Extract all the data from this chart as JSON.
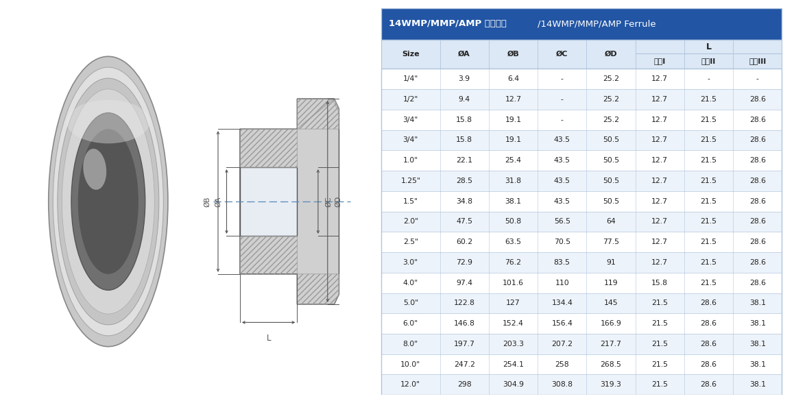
{
  "title_cn": "14WMP/MMP/AMP 卡筒接头",
  "title_en": "/14WMP/MMP/AMP Ferrule",
  "header_bg": "#2255a4",
  "header_text_color": "#ffffff",
  "subheader_bg": "#dce8f5",
  "row_bg_odd": "#ffffff",
  "row_bg_even": "#edf3fa",
  "border_color": "#b0c4de",
  "text_color": "#222222",
  "columns": [
    "Size",
    "ØA",
    "ØB",
    "ØC",
    "ØD",
    "系列I",
    "系列II",
    "系列III"
  ],
  "col_header_L": "L",
  "rows": [
    [
      "1/4\"",
      "3.9",
      "6.4",
      "-",
      "25.2",
      "12.7",
      "-",
      "-"
    ],
    [
      "1/2\"",
      "9.4",
      "12.7",
      "-",
      "25.2",
      "12.7",
      "21.5",
      "28.6"
    ],
    [
      "3/4\"",
      "15.8",
      "19.1",
      "-",
      "25.2",
      "12.7",
      "21.5",
      "28.6"
    ],
    [
      "3/4\"",
      "15.8",
      "19.1",
      "43.5",
      "50.5",
      "12.7",
      "21.5",
      "28.6"
    ],
    [
      "1.0\"",
      "22.1",
      "25.4",
      "43.5",
      "50.5",
      "12.7",
      "21.5",
      "28.6"
    ],
    [
      "1.25\"",
      "28.5",
      "31.8",
      "43.5",
      "50.5",
      "12.7",
      "21.5",
      "28.6"
    ],
    [
      "1.5\"",
      "34.8",
      "38.1",
      "43.5",
      "50.5",
      "12.7",
      "21.5",
      "28.6"
    ],
    [
      "2.0\"",
      "47.5",
      "50.8",
      "56.5",
      "64",
      "12.7",
      "21.5",
      "28.6"
    ],
    [
      "2.5\"",
      "60.2",
      "63.5",
      "70.5",
      "77.5",
      "12.7",
      "21.5",
      "28.6"
    ],
    [
      "3.0\"",
      "72.9",
      "76.2",
      "83.5",
      "91",
      "12.7",
      "21.5",
      "28.6"
    ],
    [
      "4.0\"",
      "97.4",
      "101.6",
      "110",
      "119",
      "15.8",
      "21.5",
      "28.6"
    ],
    [
      "5.0\"",
      "122.8",
      "127",
      "134.4",
      "145",
      "21.5",
      "28.6",
      "38.1"
    ],
    [
      "6.0\"",
      "146.8",
      "152.4",
      "156.4",
      "166.9",
      "21.5",
      "28.6",
      "38.1"
    ],
    [
      "8.0\"",
      "197.7",
      "203.3",
      "207.2",
      "217.7",
      "21.5",
      "28.6",
      "38.1"
    ],
    [
      "10.0\"",
      "247.2",
      "254.1",
      "258",
      "268.5",
      "21.5",
      "28.6",
      "38.1"
    ],
    [
      "12.0\"",
      "298",
      "304.9",
      "308.8",
      "319.3",
      "21.5",
      "28.6",
      "38.1"
    ]
  ],
  "diagram_bg": "#e8edf4",
  "photo_bg": "#ffffff",
  "line_color": "#555555",
  "dim_color": "#555555",
  "hatch_color": "#999999"
}
